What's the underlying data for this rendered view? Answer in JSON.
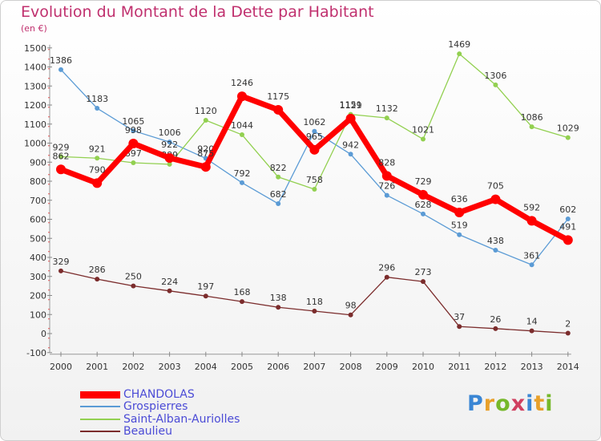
{
  "chart_data": {
    "type": "line",
    "title": "Evolution du Montant de la Dette par Habitant",
    "subtitle": "(en €)",
    "x": [
      "2000",
      "2001",
      "2002",
      "2003",
      "2004",
      "2005",
      "2006",
      "2007",
      "2008",
      "2009",
      "2010",
      "2011",
      "2012",
      "2013",
      "2014"
    ],
    "yticks": [
      -100,
      0,
      100,
      200,
      300,
      400,
      500,
      600,
      700,
      800,
      900,
      1000,
      1100,
      1200,
      1300,
      1400,
      1500
    ],
    "ylim": [
      -100,
      1500
    ],
    "series": [
      {
        "name": "Grospierres",
        "color": "#5b9bd5",
        "values": [
          1386,
          1183,
          1065,
          1006,
          920,
          792,
          682,
          1062,
          942,
          726,
          628,
          519,
          438,
          361,
          602
        ]
      },
      {
        "name": "Saint-Alban-Auriolles",
        "color": "#92d050",
        "values": [
          929,
          921,
          897,
          889,
          1120,
          1044,
          822,
          758,
          1151,
          1132,
          1021,
          1469,
          1306,
          1086,
          1029
        ]
      },
      {
        "name": "Beaulieu",
        "color": "#7b2c2c",
        "values": [
          329,
          286,
          250,
          224,
          197,
          168,
          138,
          118,
          98,
          296,
          273,
          37,
          26,
          14,
          2
        ]
      },
      {
        "name": "CHANDOLAS",
        "color": "#ff0000",
        "values": [
          862,
          790,
          998,
          922,
          875,
          1246,
          1175,
          965,
          1129,
          828,
          729,
          636,
          705,
          592,
          491
        ]
      }
    ],
    "legend_order": [
      "CHANDOLAS",
      "Grospierres",
      "Saint-Alban-Auriolles",
      "Beaulieu"
    ],
    "grid": false,
    "legend_position": "bottom-left"
  },
  "branding": {
    "logo_text": "Proxiti"
  }
}
